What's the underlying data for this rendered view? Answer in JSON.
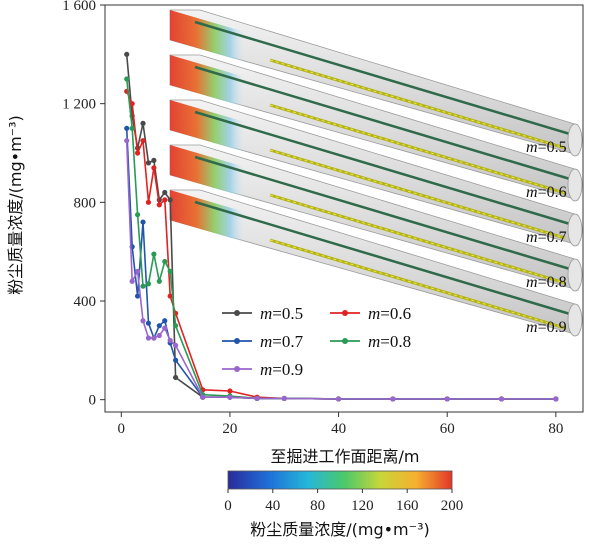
{
  "chart_data": {
    "type": "line",
    "xlabel": "至掘进工作面距离/m",
    "ylabel": "粉尘质量浓度/(mg•m⁻³)",
    "xlim": [
      -3,
      85
    ],
    "ylim": [
      -50,
      1600
    ],
    "xticks": [
      "0",
      "20",
      "40",
      "60",
      "80"
    ],
    "yticks": [
      "0",
      "400",
      "800",
      "1 200",
      "1 600"
    ],
    "x": [
      1,
      2,
      3,
      4,
      5,
      6,
      7,
      8,
      9,
      10,
      15,
      20,
      25,
      30,
      40,
      50,
      60,
      70,
      80
    ],
    "series": [
      {
        "name": "m=0.5",
        "color": "#4a4a4a",
        "values": [
          1400,
          1150,
          1020,
          1120,
          960,
          970,
          810,
          840,
          810,
          90,
          10,
          10,
          5,
          5,
          3,
          3,
          3,
          3,
          3
        ]
      },
      {
        "name": "m=0.6",
        "color": "#e02222",
        "values": [
          1250,
          1200,
          1000,
          1050,
          800,
          940,
          790,
          810,
          420,
          350,
          40,
          35,
          10,
          5,
          3,
          3,
          3,
          3,
          3
        ]
      },
      {
        "name": "m=0.7",
        "color": "#2255aa",
        "values": [
          1100,
          620,
          420,
          720,
          310,
          250,
          300,
          320,
          230,
          160,
          10,
          10,
          5,
          5,
          3,
          3,
          3,
          3,
          3
        ]
      },
      {
        "name": "m=0.8",
        "color": "#2a9a55",
        "values": [
          1300,
          1100,
          750,
          460,
          470,
          590,
          480,
          560,
          520,
          300,
          20,
          15,
          5,
          5,
          3,
          3,
          3,
          3,
          3
        ]
      },
      {
        "name": "m=0.9",
        "color": "#9966cc",
        "values": [
          1050,
          480,
          520,
          320,
          250,
          250,
          260,
          290,
          240,
          220,
          10,
          10,
          5,
          5,
          3,
          3,
          3,
          3,
          3
        ]
      }
    ],
    "legend": {
      "prefix": "m",
      "placement": "center",
      "entries": [
        {
          "name": "m=0.5",
          "value": "=0.5"
        },
        {
          "name": "m=0.6",
          "value": "=0.6"
        },
        {
          "name": "m=0.7",
          "value": "=0.7"
        },
        {
          "name": "m=0.8",
          "value": "=0.8"
        },
        {
          "name": "m=0.9",
          "value": "=0.9"
        }
      ]
    },
    "inset_labels": [
      {
        "prefix": "m",
        "value": "=0.5"
      },
      {
        "prefix": "m",
        "value": "=0.6"
      },
      {
        "prefix": "m",
        "value": "=0.7"
      },
      {
        "prefix": "m",
        "value": "=0.8"
      },
      {
        "prefix": "m",
        "value": "=0.9"
      }
    ],
    "colorbar": {
      "ticks": [
        "0",
        "40",
        "80",
        "120",
        "160",
        "200"
      ],
      "label": "粉尘质量浓度/(mg•m⁻³)",
      "colors": [
        "#2b2a9a",
        "#1f6fd8",
        "#25b8d8",
        "#4cc86a",
        "#c7d63a",
        "#f6b030",
        "#e3362a"
      ]
    }
  }
}
